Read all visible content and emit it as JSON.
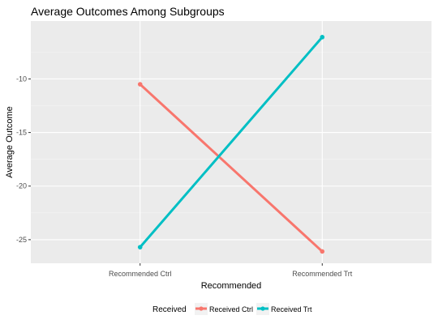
{
  "chart_data": {
    "type": "line",
    "title": "Average Outcomes Among Subgroups",
    "xlabel": "Recommended",
    "ylabel": "Average Outcome",
    "categories": [
      "Recommended Ctrl",
      "Recommended Trt"
    ],
    "ylim": [
      -27.2,
      -4.6
    ],
    "yticks": [
      -25,
      -20,
      -15,
      -10
    ],
    "grid": true,
    "legend": {
      "title": "Received",
      "position": "bottom"
    },
    "series": [
      {
        "name": "Received Ctrl",
        "color": "#F8766D",
        "values": [
          -10.5,
          -26.1
        ]
      },
      {
        "name": "Received Trt",
        "color": "#00BFC4",
        "values": [
          -25.7,
          -6.1
        ]
      }
    ]
  }
}
